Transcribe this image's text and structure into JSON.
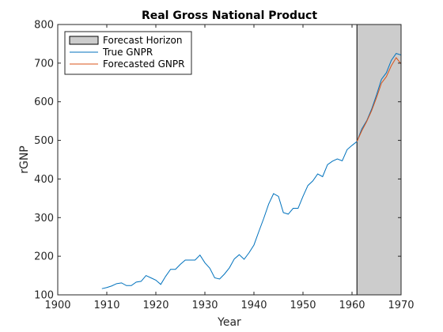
{
  "chart_data": {
    "type": "line",
    "title": "Real Gross National Product",
    "xlabel": "Year",
    "ylabel": "rGNP",
    "xlim": [
      1900,
      1970
    ],
    "ylim": [
      100,
      800
    ],
    "xticks": [
      1900,
      1910,
      1920,
      1930,
      1940,
      1950,
      1960,
      1970
    ],
    "yticks": [
      100,
      200,
      300,
      400,
      500,
      600,
      700,
      800
    ],
    "grid": false,
    "legend_position": "top-left",
    "shaded_region": {
      "name": "Forecast Horizon",
      "x_start": 1961,
      "x_end": 1970,
      "color": "#cccccc"
    },
    "series": [
      {
        "name": "True GNPR",
        "color": "#0072bd",
        "x": [
          1909,
          1910,
          1911,
          1912,
          1913,
          1914,
          1915,
          1916,
          1917,
          1918,
          1919,
          1920,
          1921,
          1922,
          1923,
          1924,
          1925,
          1926,
          1927,
          1928,
          1929,
          1930,
          1931,
          1932,
          1933,
          1934,
          1935,
          1936,
          1937,
          1938,
          1939,
          1940,
          1941,
          1942,
          1943,
          1944,
          1945,
          1946,
          1947,
          1948,
          1949,
          1950,
          1951,
          1952,
          1953,
          1954,
          1955,
          1956,
          1957,
          1958,
          1959,
          1960,
          1961,
          1962,
          1963,
          1964,
          1965,
          1966,
          1967,
          1968,
          1969,
          1970
        ],
        "y": [
          116,
          119,
          123,
          129,
          131,
          124,
          124,
          133,
          135,
          150,
          144,
          138,
          127,
          148,
          166,
          166,
          179,
          190,
          190,
          190,
          203,
          183,
          169,
          144,
          141,
          154,
          170,
          193,
          204,
          192,
          209,
          229,
          264,
          298,
          335,
          362,
          355,
          313,
          309,
          324,
          324,
          355,
          383,
          395,
          413,
          406,
          437,
          446,
          452,
          447,
          476,
          487,
          497,
          530,
          551,
          581,
          618,
          658,
          675,
          707,
          725,
          721
        ]
      },
      {
        "name": "Forecasted GNPR",
        "color": "#d95319",
        "x": [
          1961,
          1962,
          1963,
          1964,
          1965,
          1966,
          1967,
          1968,
          1969,
          1970
        ],
        "y": [
          497,
          525,
          549,
          577,
          611,
          648,
          665,
          693,
          714,
          698
        ]
      }
    ]
  }
}
